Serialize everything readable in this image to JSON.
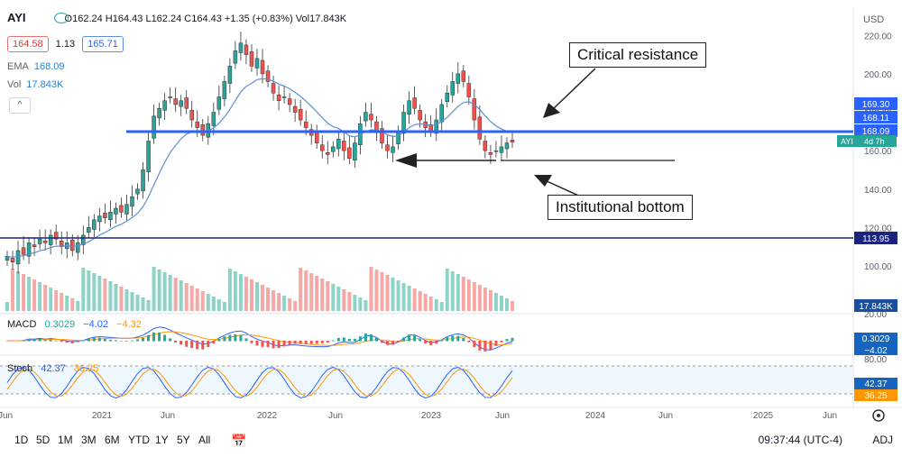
{
  "header": {
    "symbol": "AYI",
    "ohlc": "O162.24  H164.43  L162.24  C164.43  +1.35 (+0.83%)  Vol17.843K",
    "bid": "164.58",
    "spread": "1.13",
    "ask": "165.71",
    "ema_label": "EMA",
    "ema_value": "168.09",
    "vol_label": "Vol",
    "vol_value": "17.843K",
    "collapse_glyph": "^",
    "currency": "USD"
  },
  "macd": {
    "label": "MACD",
    "v1": "0.3029",
    "v2": "−4.02",
    "v3": "−4.32"
  },
  "stoch": {
    "label": "Stoch",
    "v1": "42.37",
    "v2": "36.25"
  },
  "price_labels": {
    "p1": "169.30",
    "p2": "168.11",
    "p3": "168.09",
    "cur_sym": "AYI",
    "cur_time": "4d 7h",
    "support": "113.95",
    "vol": "17.843K",
    "macd1": "0.3029",
    "macd2": "−4.02",
    "stoch1": "42.37",
    "stoch2": "36.25"
  },
  "annotations": {
    "resistance": "Critical resistance",
    "bottom": "Institutional bottom"
  },
  "bottombar": {
    "ranges": [
      "1D",
      "5D",
      "1M",
      "3M",
      "6M",
      "YTD",
      "1Y",
      "5Y",
      "All"
    ],
    "time": "09:37:44 (UTC-4)",
    "adj": "ADJ"
  },
  "colors": {
    "up": "#26a69a",
    "down": "#ef5350",
    "ema": "#5b8fd6",
    "resistance": "#2962ff",
    "support": "#1a237e"
  },
  "chart_data": {
    "type": "candlestick",
    "ylim": [
      100,
      222
    ],
    "y_ticks": [
      220,
      200,
      180,
      160,
      140,
      120,
      100
    ],
    "x_ticks": [
      "Jun",
      "2021",
      "Jun",
      "2022",
      "Jun",
      "2023",
      "Jun",
      "2024",
      "Jun",
      "2025",
      "Jun"
    ],
    "macd_ticks": [
      "20.00"
    ],
    "stoch_ticks": [
      "80.00"
    ],
    "lines": [
      {
        "name": "Critical resistance",
        "value": 168.09
      },
      {
        "name": "Institutional bottom",
        "value": 154
      },
      {
        "name": "Support",
        "value": 113.95
      }
    ],
    "closes": [
      105,
      102,
      108,
      106,
      112,
      110,
      114,
      112,
      116,
      114,
      110,
      112,
      108,
      112,
      116,
      120,
      124,
      126,
      125,
      128,
      130,
      128,
      132,
      136,
      140,
      150,
      165,
      178,
      182,
      186,
      188,
      184,
      186,
      182,
      176,
      172,
      168,
      174,
      180,
      188,
      196,
      204,
      212,
      216,
      210,
      204,
      208,
      200,
      196,
      190,
      186,
      188,
      184,
      180,
      176,
      172,
      168,
      164,
      160,
      158,
      162,
      166,
      160,
      156,
      164,
      174,
      180,
      176,
      170,
      164,
      160,
      162,
      170,
      180,
      186,
      182,
      176,
      172,
      170,
      176,
      184,
      190,
      196,
      200,
      196,
      188,
      176,
      166,
      160,
      158,
      160,
      162,
      164,
      164.43
    ]
  }
}
